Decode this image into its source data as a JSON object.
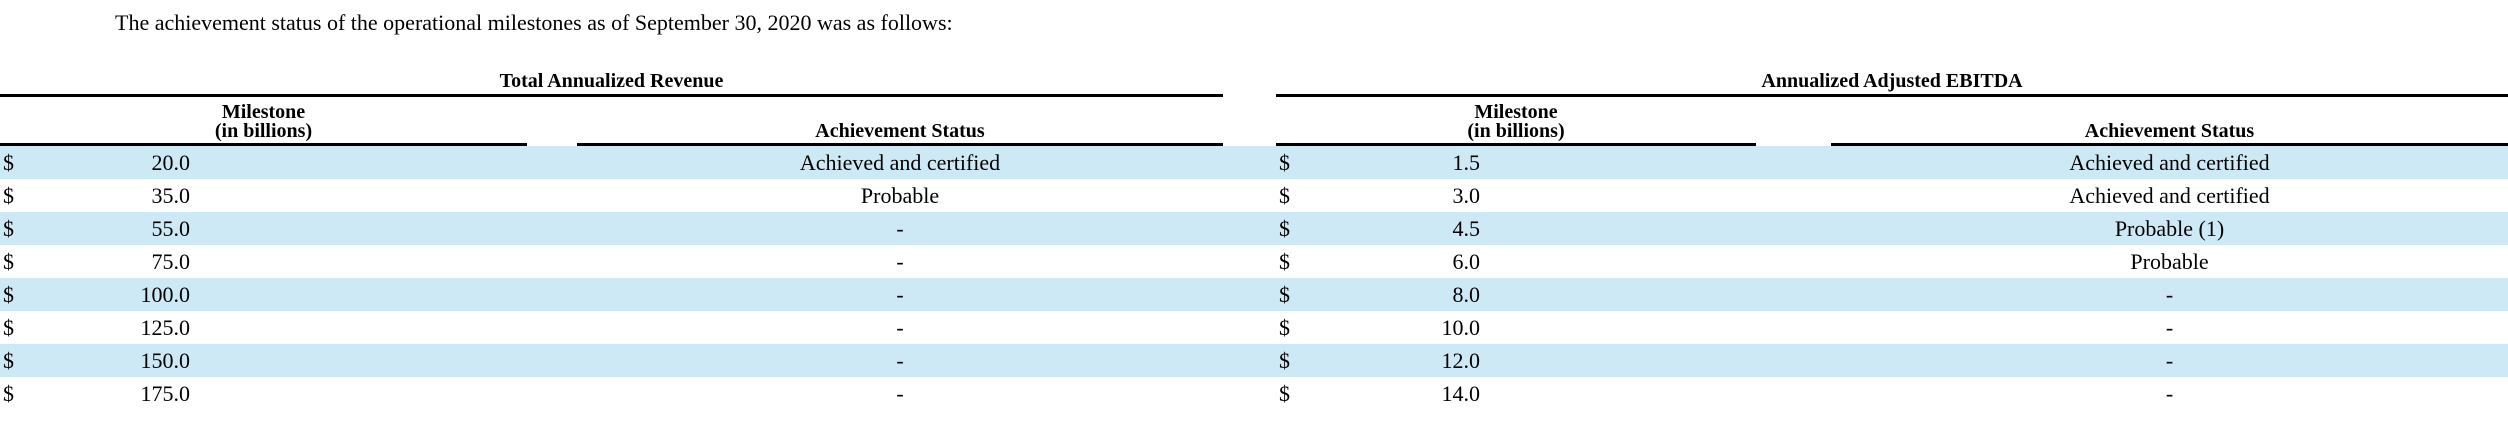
{
  "intro": "The achievement status of the operational milestones as of September 30, 2020 was as follows:",
  "colors": {
    "stripe": "#cee9f6",
    "rule": "#000000"
  },
  "tables": [
    {
      "group_title": "Total Annualized Revenue",
      "milestone_header_line1": "Milestone",
      "milestone_header_line2": "(in billions)",
      "status_header": "Achievement Status",
      "currency": "$",
      "rows": [
        {
          "milestone": "20.0",
          "status": "Achieved and certified"
        },
        {
          "milestone": "35.0",
          "status": "Probable"
        },
        {
          "milestone": "55.0",
          "status": "-"
        },
        {
          "milestone": "75.0",
          "status": "-"
        },
        {
          "milestone": "100.0",
          "status": "-"
        },
        {
          "milestone": "125.0",
          "status": "-"
        },
        {
          "milestone": "150.0",
          "status": "-"
        },
        {
          "milestone": "175.0",
          "status": "-"
        }
      ]
    },
    {
      "group_title": "Annualized Adjusted EBITDA",
      "milestone_header_line1": "Milestone",
      "milestone_header_line2": "(in billions)",
      "status_header": "Achievement Status",
      "currency": "$",
      "rows": [
        {
          "milestone": "1.5",
          "status": "Achieved and certified"
        },
        {
          "milestone": "3.0",
          "status": "Achieved and certified"
        },
        {
          "milestone": "4.5",
          "status": "Probable (1)"
        },
        {
          "milestone": "6.0",
          "status": "Probable"
        },
        {
          "milestone": "8.0",
          "status": "-"
        },
        {
          "milestone": "10.0",
          "status": "-"
        },
        {
          "milestone": "12.0",
          "status": "-"
        },
        {
          "milestone": "14.0",
          "status": "-"
        }
      ]
    }
  ]
}
